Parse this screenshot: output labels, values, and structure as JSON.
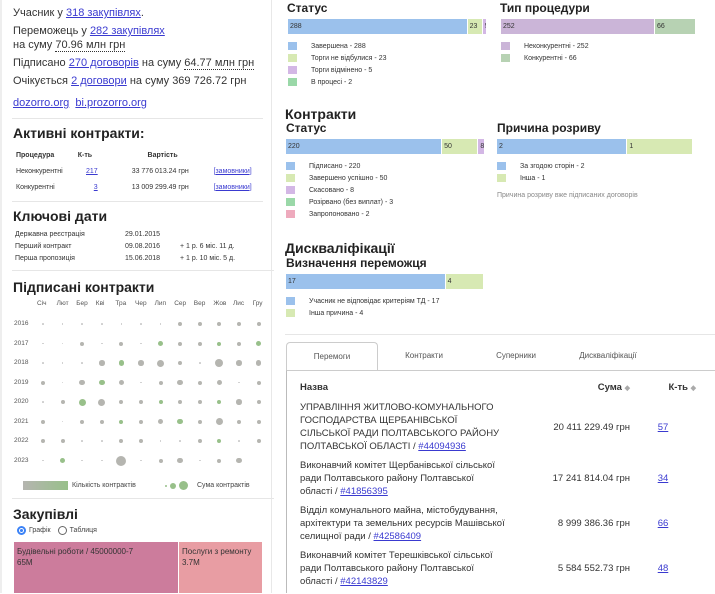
{
  "summary": {
    "participant_pre": "Учасник у ",
    "participant_link": "318 закупівлях",
    "participant_post": ".",
    "winner_pre": "Переможець у ",
    "winner_link": "282 закупівлях",
    "sum_pre": "на суму ",
    "sum_value": "70.96 млн грн",
    "signed_pre": "Підписано ",
    "signed_link": "270 договорів",
    "signed_mid": " на суму ",
    "signed_value": "64.77 млн грн",
    "expected_pre": "Очікується ",
    "expected_link": "2 договори",
    "expected_post": " на суму 369 726.72 грн",
    "links": [
      "dozorro.org",
      "bi.prozorro.org"
    ]
  },
  "active": {
    "title": "Активні контракти:",
    "headers": [
      "Процедура",
      "К-ть",
      "Вартість"
    ],
    "rows": [
      {
        "proc": "Неконкурентні",
        "count": "217",
        "value": "33 776 013.24 грн",
        "link": "[замовники]"
      },
      {
        "proc": "Конкурентні",
        "count": "3",
        "value": "13 009 299.49 грн",
        "link": "[замовники]"
      }
    ]
  },
  "dates": {
    "title": "Ключові дати",
    "rows": [
      {
        "label": "Державна реєстрація",
        "date": "29.01.2015",
        "delta": ""
      },
      {
        "label": "Перший контракт",
        "date": "09.08.2016",
        "delta": "+ 1 р. 6 міс. 11 д."
      },
      {
        "label": "Перша пропозиція",
        "date": "15.06.2018",
        "delta": "+ 1 р. 10 міс. 5 д."
      }
    ]
  },
  "signed": {
    "title": "Підписані контракти",
    "months": [
      "Січ",
      "Лют",
      "Бер",
      "Кві",
      "Тра",
      "Чер",
      "Лип",
      "Сер",
      "Вер",
      "Жов",
      "Лис",
      "Гру"
    ],
    "years": [
      "2016",
      "2017",
      "2018",
      "2019",
      "2020",
      "2021",
      "2022",
      "2023"
    ],
    "size_levels": [
      [
        1,
        1,
        1,
        1,
        1,
        1,
        1,
        2,
        2,
        2,
        2,
        2
      ],
      [
        1,
        1,
        2,
        1,
        2,
        1,
        3,
        2,
        2,
        2,
        2,
        3
      ],
      [
        1,
        1,
        1,
        3,
        3,
        3,
        4,
        2,
        1,
        5,
        3,
        3
      ],
      [
        2,
        1,
        3,
        3,
        3,
        1,
        2,
        3,
        2,
        3,
        1,
        2
      ],
      [
        1,
        2,
        4,
        4,
        2,
        2,
        2,
        2,
        2,
        2,
        3,
        2
      ],
      [
        2,
        1,
        2,
        2,
        2,
        2,
        3,
        3,
        2,
        4,
        2,
        2
      ],
      [
        2,
        2,
        1,
        1,
        2,
        2,
        1,
        1,
        2,
        2,
        1,
        2
      ],
      [
        1,
        3,
        1,
        1,
        6,
        1,
        2,
        3,
        1,
        2,
        3,
        0
      ]
    ],
    "green_cells": [
      [
        1,
        6
      ],
      [
        1,
        9
      ],
      [
        1,
        11
      ],
      [
        2,
        4
      ],
      [
        3,
        3
      ],
      [
        4,
        2
      ],
      [
        4,
        6
      ],
      [
        4,
        9
      ],
      [
        5,
        4
      ],
      [
        5,
        7
      ],
      [
        6,
        9
      ],
      [
        7,
        1
      ]
    ],
    "legend_count": "Кількість контрактів",
    "legend_sum": "Сума контрактів",
    "colors": {
      "gray": "#b5b5b0",
      "green": "#98c08a"
    }
  },
  "tenders": {
    "title": "Закупівлі",
    "radio": [
      {
        "label": "Графік",
        "checked": true
      },
      {
        "label": "Таблиця",
        "checked": false
      }
    ],
    "tiles": [
      {
        "label": "Будівельні роботи / 45000000-7",
        "value": "65M",
        "color": "#cc7c9c"
      },
      {
        "label": "Послуги з ремонту",
        "value": "3.7M",
        "color": "#e89da3"
      }
    ]
  },
  "status": {
    "title": "Статус",
    "bars": [
      {
        "v": "288",
        "n": 288,
        "c": "#9bc1ec"
      },
      {
        "v": "23",
        "n": 23,
        "c": "#d7e9b3"
      },
      {
        "v": "5",
        "n": 5,
        "c": "#d3b7e5"
      }
    ],
    "legend": [
      {
        "l": "Завершена - 288",
        "c": "#9bc1ec"
      },
      {
        "l": "Торги не відбулися - 23",
        "c": "#d7e9b3"
      },
      {
        "l": "Торги відмінено - 5",
        "c": "#d3b7e5"
      },
      {
        "l": "В процесі - 2",
        "c": "#9ad8a8"
      }
    ]
  },
  "proc_type": {
    "title": "Тип процедури",
    "bars": [
      {
        "v": "252",
        "n": 252,
        "c": "#cbb5d8"
      },
      {
        "v": "66",
        "n": 66,
        "c": "#b7d2b3"
      }
    ],
    "legend": [
      {
        "l": "Неконкурентні - 252",
        "c": "#cbb5d8"
      },
      {
        "l": "Конкурентні - 66",
        "c": "#b7d2b3"
      }
    ]
  },
  "contracts": {
    "title": "Контракти",
    "status_title": "Статус",
    "bars": [
      {
        "v": "220",
        "n": 220,
        "c": "#9bc1ec"
      },
      {
        "v": "50",
        "n": 50,
        "c": "#d7e9b3"
      },
      {
        "v": "8",
        "n": 8,
        "c": "#d3b7e5"
      }
    ],
    "legend": [
      {
        "l": "Підписано - 220",
        "c": "#9bc1ec"
      },
      {
        "l": "Завершено успішно - 50",
        "c": "#d7e9b3"
      },
      {
        "l": "Скасовано - 8",
        "c": "#d3b7e5"
      },
      {
        "l": "Розірвано (без виплат) - 3",
        "c": "#9ad8a8"
      },
      {
        "l": "Запропоновано - 2",
        "c": "#eeaabd"
      }
    ],
    "reason_title": "Причина розриву",
    "reason_bars": [
      {
        "v": "2",
        "n": 2,
        "c": "#9bc1ec"
      },
      {
        "v": "1",
        "n": 1,
        "c": "#d7e9b3"
      }
    ],
    "reason_legend": [
      {
        "l": "За згодою сторін - 2",
        "c": "#9bc1ec"
      },
      {
        "l": "Інша - 1",
        "c": "#d7e9b3"
      }
    ],
    "reason_note": "Причина розриву вже підписаних договорів"
  },
  "disq": {
    "title": "Дискваліфікації",
    "sub": "Визначення переможця",
    "bars": [
      {
        "v": "17",
        "n": 17,
        "c": "#9bc1ec"
      },
      {
        "v": "4",
        "n": 4,
        "c": "#d7e9b3"
      }
    ],
    "legend": [
      {
        "l": "Учасник не відповідає критеріям ТД - 17",
        "c": "#9bc1ec"
      },
      {
        "l": "Інша причина - 4",
        "c": "#d7e9b3"
      }
    ]
  },
  "tabs": [
    "Перемоги",
    "Контракти",
    "Суперники",
    "Дискваліфікації"
  ],
  "table": {
    "headers": [
      "Назва",
      "Сума",
      "К-ть"
    ],
    "rows": [
      {
        "name": "УПРАВЛІННЯ ЖИТЛОВО-КОМУНАЛЬНОГО ГОСПОДАРСТВА ЩЕРБАНІВСЬКОЇ СІЛЬСЬКОЇ РАДИ ПОЛТАВСЬКОГО РАЙОНУ ПОЛТАВСЬКОЇ ОБЛАСТІ / ",
        "id": "#44094936",
        "sum": "20 411 229.49 грн",
        "count": "57"
      },
      {
        "name": "Виконавчий комітет Щербанівської сільської ради Полтавського району Полтавської області / ",
        "id": "#41856395",
        "sum": "17 241 814.04 грн",
        "count": "34"
      },
      {
        "name": "Відділ комунального майна, містобудування, архітектури та земельних ресурсів Машівської селищної ради / ",
        "id": "#42586409",
        "sum": "8 999 386.36 грн",
        "count": "66"
      },
      {
        "name": "Виконавчий комітет Терешківської сільської ради Полтавського району Полтавської області / ",
        "id": "#42143829",
        "sum": "5 584 552.73 грн",
        "count": "48"
      }
    ]
  }
}
